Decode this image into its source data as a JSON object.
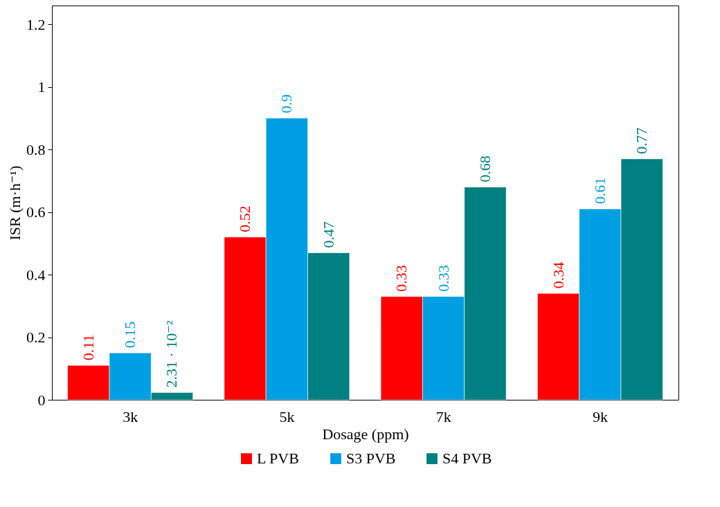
{
  "chart_data": {
    "type": "bar",
    "xlabel": "Dosage (ppm)",
    "ylabel": "ISR (m·h⁻¹)",
    "categories": [
      "3k",
      "5k",
      "7k",
      "9k"
    ],
    "series": [
      {
        "name": "L PVB",
        "color": "#ff0000",
        "values": [
          0.11,
          0.52,
          0.33,
          0.34
        ],
        "value_labels": [
          "0.11",
          "0.52",
          "0.33",
          "0.34"
        ]
      },
      {
        "name": "S3 PVB",
        "color": "#009fe3",
        "values": [
          0.15,
          0.9,
          0.33,
          0.61
        ],
        "value_labels": [
          "0.15",
          "0.9",
          "0.33",
          "0.61"
        ]
      },
      {
        "name": "S4 PVB",
        "color": "#008080",
        "values": [
          0.0231,
          0.47,
          0.68,
          0.77
        ],
        "value_labels": [
          "2.31 · 10⁻²",
          "0.47",
          "0.68",
          "0.77"
        ]
      }
    ],
    "ylim": [
      0,
      1.26
    ],
    "yticks": [
      0,
      0.2,
      0.4,
      0.6,
      0.8,
      1,
      1.2
    ],
    "grid": false,
    "legend": "bottom"
  }
}
